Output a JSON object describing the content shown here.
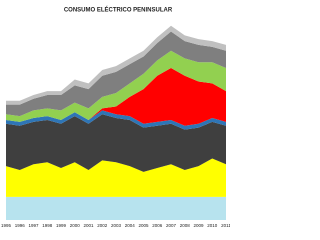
{
  "chart_data": {
    "type": "stacked-area",
    "title": "CONSUMO ELÉCTRICO PENINSULAR",
    "categories": [
      "1995",
      "1996",
      "1997",
      "1998",
      "1999",
      "2000",
      "2001",
      "2002",
      "2003",
      "2004",
      "2005",
      "2006",
      "2007",
      "2008",
      "2009",
      "2010",
      "2011"
    ],
    "ylim": [
      0,
      105
    ],
    "series": [
      {
        "color": "#b7e3ee",
        "values": [
          12,
          12,
          12,
          12,
          12,
          12,
          12,
          12,
          12,
          12,
          12,
          12,
          12,
          12,
          12,
          12,
          12
        ]
      },
      {
        "color": "#ffff00",
        "values": [
          16,
          14,
          17,
          18,
          15,
          18,
          14,
          19,
          18,
          16,
          13,
          15,
          17,
          14,
          16,
          20,
          17
        ]
      },
      {
        "color": "#3f3f3f",
        "values": [
          22,
          23,
          22,
          22,
          23,
          24,
          24,
          24,
          23,
          24,
          23,
          22,
          21,
          21,
          20,
          19,
          20
        ]
      },
      {
        "color": "#2e75b6",
        "values": [
          2,
          2,
          2,
          2,
          2,
          2,
          2,
          2,
          2,
          2,
          2,
          2,
          2,
          2,
          2,
          2,
          2
        ]
      },
      {
        "color": "#ff0000",
        "values": [
          0,
          0,
          0,
          0,
          0,
          0,
          0,
          1,
          4,
          10,
          18,
          24,
          27,
          26,
          22,
          18,
          16
        ]
      },
      {
        "color": "#92d050",
        "values": [
          3,
          3,
          4,
          4,
          5,
          5,
          6,
          6,
          7,
          7,
          8,
          8,
          9,
          9,
          10,
          11,
          12
        ]
      },
      {
        "color": "#7f7f7f",
        "values": [
          5,
          6,
          6,
          7,
          8,
          9,
          10,
          11,
          11,
          10,
          9,
          9,
          10,
          9,
          9,
          8,
          9
        ]
      },
      {
        "color": "#c0c0c0",
        "values": [
          2,
          2,
          2,
          2,
          2,
          3,
          3,
          3,
          3,
          3,
          3,
          3,
          3,
          3,
          3,
          3,
          3
        ]
      }
    ]
  }
}
